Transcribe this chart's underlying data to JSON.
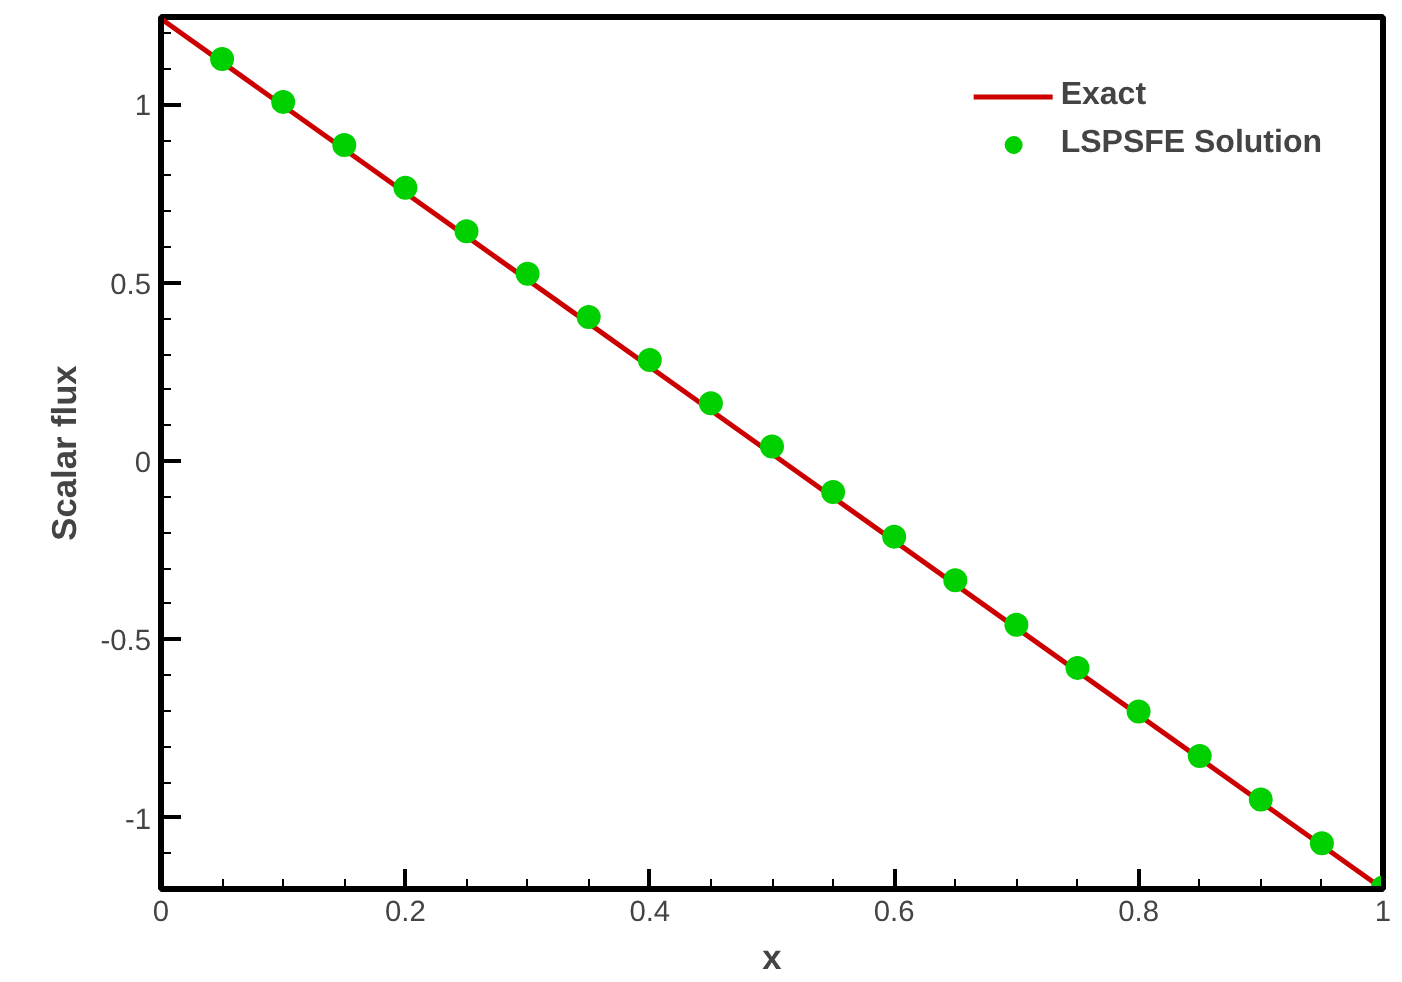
{
  "chart_data": {
    "type": "scatter",
    "xlabel": "x",
    "ylabel": "Scalar flux",
    "xlim": [
      0,
      1
    ],
    "ylim": [
      -1.2,
      1.245
    ],
    "xticks": [
      0,
      {
        "value": 0.05,
        "label": null
      },
      {
        "value": 0.1,
        "label": null
      },
      {
        "value": 0.15,
        "label": null
      },
      0.2,
      {
        "value": 0.25,
        "label": null
      },
      {
        "value": 0.3,
        "label": null
      },
      {
        "value": 0.35,
        "label": null
      },
      0.4,
      {
        "value": 0.45,
        "label": null
      },
      {
        "value": 0.5,
        "label": null
      },
      {
        "value": 0.55,
        "label": null
      },
      0.6,
      {
        "value": 0.65,
        "label": null
      },
      {
        "value": 0.7,
        "label": null
      },
      {
        "value": 0.75,
        "label": null
      },
      0.8,
      {
        "value": 0.85,
        "label": null
      },
      {
        "value": 0.9,
        "label": null
      },
      {
        "value": 0.95,
        "label": null
      },
      1
    ],
    "yticks": [
      {
        "value": -1.1,
        "label": null
      },
      -1,
      {
        "value": -0.9,
        "label": null
      },
      {
        "value": -0.8,
        "label": null
      },
      {
        "value": -0.7,
        "label": null
      },
      {
        "value": -0.6,
        "label": null
      },
      -0.5,
      {
        "value": -0.4,
        "label": null
      },
      {
        "value": -0.3,
        "label": null
      },
      {
        "value": -0.2,
        "label": null
      },
      {
        "value": -0.1,
        "label": null
      },
      0,
      {
        "value": 0.1,
        "label": null
      },
      {
        "value": 0.2,
        "label": null
      },
      {
        "value": 0.3,
        "label": null
      },
      {
        "value": 0.4,
        "label": null
      },
      0.5,
      {
        "value": 0.6,
        "label": null
      },
      {
        "value": 0.7,
        "label": null
      },
      {
        "value": 0.8,
        "label": null
      },
      {
        "value": 0.9,
        "label": null
      },
      1,
      {
        "value": 1.1,
        "label": null
      },
      {
        "value": 1.2,
        "label": null
      }
    ],
    "grid": false,
    "legend": "top right",
    "series": [
      {
        "name": "Exact",
        "type": "line",
        "color": "#cc0000",
        "line_style": "solid",
        "marker": "none",
        "x": [
          0,
          1
        ],
        "values": [
          1.24,
          -1.2
        ]
      },
      {
        "name": "LSPSFE Solution",
        "color": "#00d000",
        "marker": "circle",
        "x": [
          0.05,
          0.1,
          0.15,
          0.2,
          0.25,
          0.3,
          0.35,
          0.4,
          0.45,
          0.5,
          0.55,
          0.6,
          0.65,
          0.7,
          0.75,
          0.8,
          0.85,
          0.9,
          0.95,
          1.0
        ],
        "values": [
          1.127,
          1.007,
          0.886,
          0.766,
          0.644,
          0.525,
          0.404,
          0.283,
          0.162,
          0.041,
          -0.087,
          -0.212,
          -0.334,
          -0.459,
          -0.58,
          -0.702,
          -0.827,
          -0.949,
          -1.072,
          -1.196
        ]
      }
    ]
  }
}
